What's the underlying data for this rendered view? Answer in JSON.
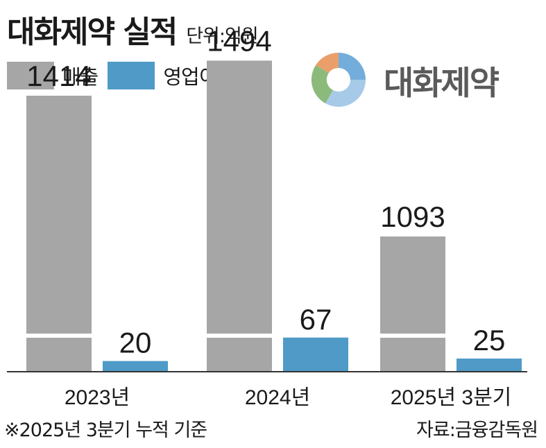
{
  "header": {
    "title": "대화제약 실적",
    "unit": "단위:억원"
  },
  "logo": {
    "brand_text": "대화제약",
    "icon": "dhp-circle-logo-icon"
  },
  "colors": {
    "sales": "#a6a6a6",
    "op_profit": "#4f9ac6",
    "logo_orange": "#e8955a",
    "logo_blue": "#5a9fd6",
    "logo_green": "#7fb26b"
  },
  "chart_data": {
    "type": "bar",
    "categories": [
      "2023년",
      "2024년",
      "2025년 3분기"
    ],
    "series": [
      {
        "name": "매출",
        "values": [
          1414,
          1494,
          1093
        ]
      },
      {
        "name": "영업이익",
        "values": [
          20,
          67,
          25
        ]
      }
    ],
    "value_labels": [
      [
        "1414",
        "1494",
        "1093"
      ],
      [
        "20",
        "67",
        "25"
      ]
    ],
    "axis_break": true,
    "grid": false,
    "legend_position": "top-left"
  },
  "footer": {
    "footnote": "※2025년 3분기 누적 기준",
    "source": "자료:금융감독원"
  }
}
